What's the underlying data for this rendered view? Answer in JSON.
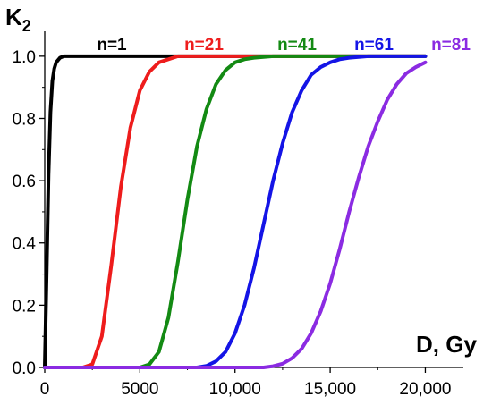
{
  "chart_data": {
    "type": "line",
    "ylabel": "K",
    "ylabel_sub": "2",
    "xlabel": "D, Gy",
    "xlim": [
      0,
      22000
    ],
    "ylim": [
      0,
      1.08
    ],
    "x_ticks": [
      0,
      5000,
      10000,
      15000,
      20000
    ],
    "x_tick_labels": [
      "0",
      "5000",
      "10,000",
      "15,000",
      "20,000"
    ],
    "y_ticks": [
      0.0,
      0.2,
      0.4,
      0.6,
      0.8,
      1.0
    ],
    "y_tick_labels": [
      "0.0",
      "0.2",
      "0.4",
      "0.6",
      "0.8",
      "1.0"
    ],
    "grid": false,
    "series": [
      {
        "name": "n=1",
        "color": "#000000",
        "x": [
          0,
          100,
          200,
          300,
          400,
          500,
          600,
          800,
          1000,
          1500,
          20000
        ],
        "y": [
          0.0,
          0.3,
          0.62,
          0.82,
          0.92,
          0.96,
          0.98,
          0.995,
          1.0,
          1.0,
          1.0
        ]
      },
      {
        "name": "n=21",
        "color": "#ee1c1c",
        "x": [
          0,
          2000,
          2500,
          3000,
          3500,
          4000,
          4500,
          5000,
          5500,
          6000,
          6500,
          7000,
          8000,
          20000
        ],
        "y": [
          0.0,
          0.0,
          0.01,
          0.1,
          0.33,
          0.58,
          0.77,
          0.89,
          0.95,
          0.98,
          0.99,
          1.0,
          1.0,
          1.0
        ]
      },
      {
        "name": "n=41",
        "color": "#138a13",
        "x": [
          0,
          5000,
          5500,
          6000,
          6500,
          7000,
          7500,
          8000,
          8500,
          9000,
          9500,
          10000,
          10500,
          11000,
          12000,
          20000
        ],
        "y": [
          0.0,
          0.0,
          0.01,
          0.05,
          0.16,
          0.34,
          0.54,
          0.71,
          0.83,
          0.91,
          0.955,
          0.98,
          0.99,
          0.995,
          1.0,
          1.0
        ]
      },
      {
        "name": "n=61",
        "color": "#1414e6",
        "x": [
          0,
          8000,
          8500,
          9000,
          9500,
          10000,
          10500,
          11000,
          11500,
          12000,
          12500,
          13000,
          13500,
          14000,
          14500,
          15000,
          15500,
          16000,
          17000,
          20000
        ],
        "y": [
          0.0,
          0.0,
          0.005,
          0.02,
          0.05,
          0.11,
          0.2,
          0.32,
          0.46,
          0.6,
          0.72,
          0.82,
          0.89,
          0.94,
          0.965,
          0.98,
          0.99,
          0.995,
          1.0,
          1.0
        ]
      },
      {
        "name": "n=81",
        "color": "#8b2be2",
        "x": [
          0,
          11500,
          12000,
          12500,
          13000,
          13500,
          14000,
          14500,
          15000,
          15500,
          16000,
          16500,
          17000,
          17500,
          18000,
          18500,
          19000,
          19500,
          20000
        ],
        "y": [
          0.0,
          0.0,
          0.004,
          0.012,
          0.03,
          0.06,
          0.11,
          0.18,
          0.27,
          0.38,
          0.5,
          0.61,
          0.71,
          0.79,
          0.86,
          0.91,
          0.945,
          0.965,
          0.98
        ]
      }
    ]
  }
}
